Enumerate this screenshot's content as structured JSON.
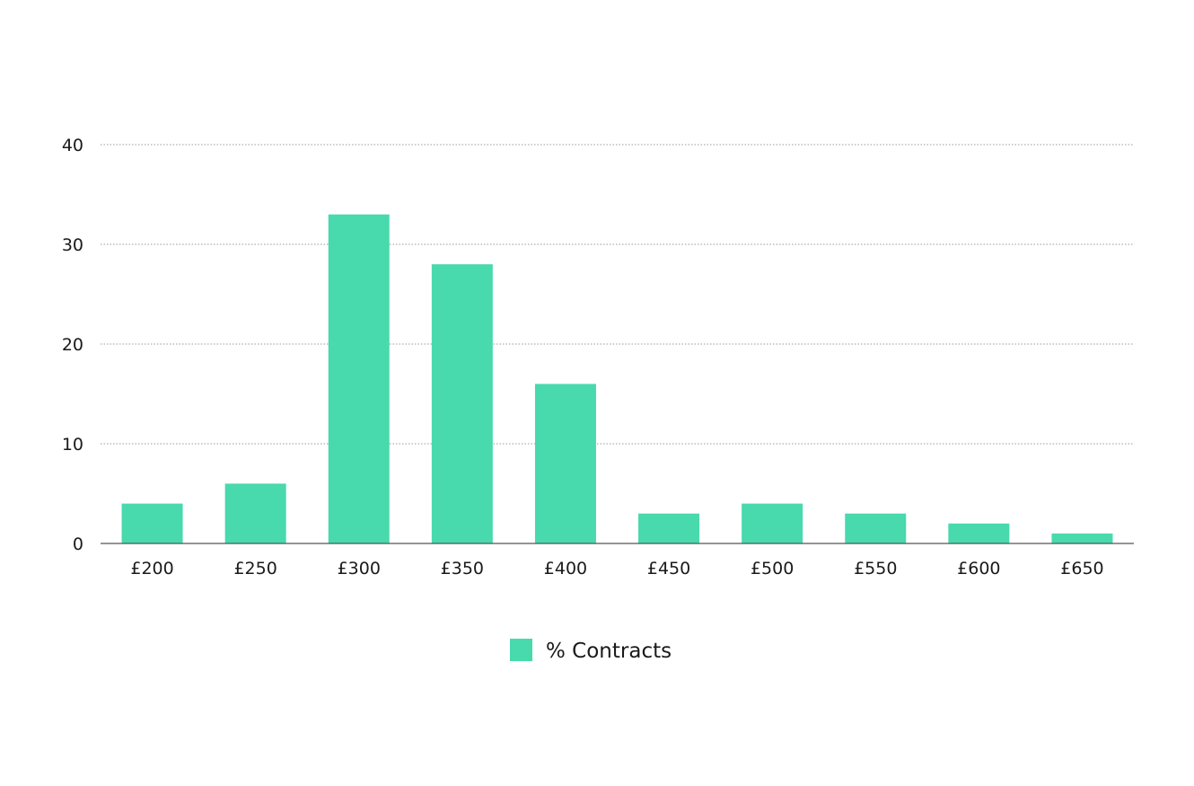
{
  "chart_data": {
    "type": "bar",
    "categories": [
      "£200",
      "£250",
      "£300",
      "£350",
      "£400",
      "£450",
      "£500",
      "£550",
      "£600",
      "£650"
    ],
    "series": [
      {
        "name": "% Contracts",
        "values": [
          4,
          6,
          33,
          28,
          16,
          3,
          4,
          3,
          2,
          1
        ],
        "color": "#48d9ad"
      }
    ],
    "title": "",
    "xlabel": "",
    "ylabel": "",
    "ylim": [
      0,
      40
    ],
    "yticks": [
      0,
      10,
      20,
      30,
      40
    ],
    "grid": true,
    "grid_style": "dotted",
    "legend_position": "bottom-center"
  }
}
